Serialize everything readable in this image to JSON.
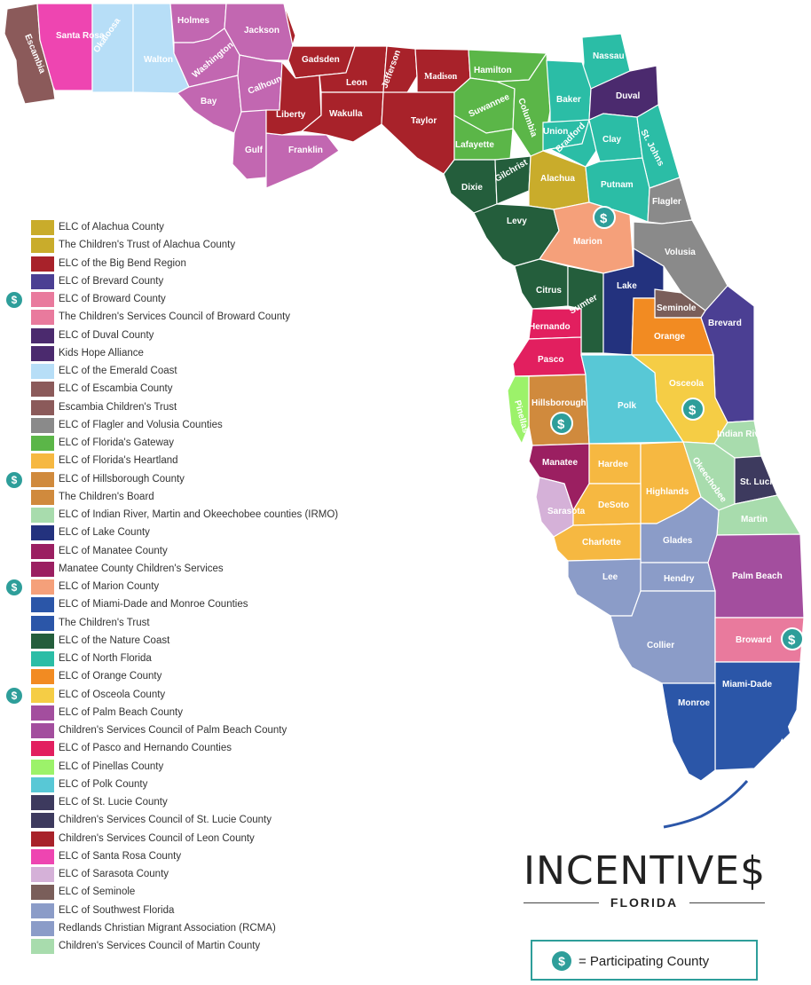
{
  "brand": {
    "title": "INCENTIVE$",
    "subtitle": "FLORIDA"
  },
  "key": {
    "symbol": "$",
    "text": "= Participating County"
  },
  "participating_symbol": "$",
  "colors": {
    "participating": "#2e9e9a"
  },
  "counties": {
    "escambia": "Escambia",
    "santa_rosa": "Santa Rosa",
    "okaloosa": "Okaloosa",
    "walton": "Walton",
    "holmes": "Holmes",
    "jackson": "Jackson",
    "washington": "Washington",
    "bay": "Bay",
    "calhoun": "Calhoun",
    "gulf": "Gulf",
    "franklin": "Franklin",
    "gadsden": "Gadsden",
    "liberty": "Liberty",
    "leon": "Leon",
    "wakulla": "Wakulla",
    "jefferson": "Jefferson",
    "madison": "Madison",
    "taylor": "Taylor",
    "hamilton": "Hamilton",
    "suwannee": "Suwannee",
    "columbia": "Columbia",
    "lafayette": "Lafayette",
    "dixie": "Dixie",
    "gilchrist": "Gilchrist",
    "nassau": "Nassau",
    "baker": "Baker",
    "duval": "Duval",
    "union": "Union",
    "bradford": "Bradford",
    "clay": "Clay",
    "st_johns": "St. Johns",
    "alachua": "Alachua",
    "putnam": "Putnam",
    "flagler": "Flagler",
    "levy": "Levy",
    "marion": "Marion",
    "volusia": "Volusia",
    "citrus": "Citrus",
    "sumter": "Sumter",
    "lake": "Lake",
    "seminole": "Seminole",
    "brevard": "Brevard",
    "hernando": "Hernando",
    "orange": "Orange",
    "pasco": "Pasco",
    "osceola": "Osceola",
    "hillsborough": "Hillsborough",
    "pinellas": "Pinellas",
    "polk": "Polk",
    "indian_river": "Indian River",
    "manatee": "Manatee",
    "hardee": "Hardee",
    "highlands": "Highlands",
    "okeechobee": "Okeechobee",
    "st_lucie": "St. Lucie",
    "sarasota": "Sarasota",
    "desoto": "DeSoto",
    "martin": "Martin",
    "charlotte": "Charlotte",
    "glades": "Glades",
    "lee": "Lee",
    "hendry": "Hendry",
    "palm_beach": "Palm Beach",
    "collier": "Collier",
    "broward": "Broward",
    "monroe": "Monroe",
    "miami_dade": "Miami-Dade"
  },
  "legend": [
    {
      "label": "ELC of Alachua County",
      "color": "#c9ac2b",
      "participating": false
    },
    {
      "label": "The Children's Trust of Alachua County",
      "color": "#c9ac2b",
      "participating": false
    },
    {
      "label": "ELC of the Big Bend Region",
      "color": "#a8222a",
      "participating": false
    },
    {
      "label": "ELC of Brevard County",
      "color": "#4b3f93",
      "participating": false
    },
    {
      "label": "ELC of Broward County",
      "color": "#e97a9d",
      "participating": true
    },
    {
      "label": "The Children's Services Council of Broward County",
      "color": "#e97a9d",
      "participating": false
    },
    {
      "label": "ELC of Duval County",
      "color": "#4b2a6e",
      "participating": false
    },
    {
      "label": "Kids Hope Alliance",
      "color": "#4b2a6e",
      "participating": false
    },
    {
      "label": "ELC of the Emerald Coast",
      "color": "#b7def7",
      "participating": false
    },
    {
      "label": "ELC of Escambia County",
      "color": "#8b5a5a",
      "participating": false
    },
    {
      "label": "Escambia Children's Trust",
      "color": "#8b5a5a",
      "participating": false
    },
    {
      "label": "ELC of Flagler and Volusia Counties",
      "color": "#8a8a8a",
      "participating": false
    },
    {
      "label": "ELC of Florida's Gateway",
      "color": "#5bb648",
      "participating": false
    },
    {
      "label": "ELC of Florida's Heartland",
      "color": "#f6b841",
      "participating": false
    },
    {
      "label": "ELC of Hillsborough County",
      "color": "#d08a3d",
      "participating": true
    },
    {
      "label": "The Children's Board",
      "color": "#d08a3d",
      "participating": false
    },
    {
      "label": "ELC of Indian River, Martin and Okeechobee counties (IRMO)",
      "color": "#a8dcad",
      "participating": false
    },
    {
      "label": "ELC of Lake County",
      "color": "#23327e",
      "participating": false
    },
    {
      "label": "ELC of Manatee County",
      "color": "#9b1f61",
      "participating": false
    },
    {
      "label": "Manatee County Children's Services",
      "color": "#9b1f61",
      "participating": false
    },
    {
      "label": "ELC of Marion County",
      "color": "#f5a07a",
      "participating": true
    },
    {
      "label": "ELC of Miami-Dade and Monroe Counties",
      "color": "#2b56a8",
      "participating": false
    },
    {
      "label": "The Children's Trust",
      "color": "#2b56a8",
      "participating": false
    },
    {
      "label": "ELC of the Nature Coast",
      "color": "#245e3c",
      "participating": false
    },
    {
      "label": "ELC of North Florida",
      "color": "#2bbda6",
      "participating": false
    },
    {
      "label": "ELC of Orange County",
      "color": "#f28b22",
      "participating": false
    },
    {
      "label": "ELC of Osceola County",
      "color": "#f5cd45",
      "participating": true
    },
    {
      "label": "ELC of Palm Beach County",
      "color": "#a34e9e",
      "participating": false
    },
    {
      "label": "Children's Services Council of Palm Beach County",
      "color": "#a34e9e",
      "participating": false
    },
    {
      "label": "ELC of Pasco and Hernando Counties",
      "color": "#e21f5f",
      "participating": false
    },
    {
      "label": "ELC of Pinellas County",
      "color": "#9cf26a",
      "participating": false
    },
    {
      "label": "ELC of Polk County",
      "color": "#58c8d6",
      "participating": false
    },
    {
      "label": "ELC of St. Lucie County",
      "color": "#3d3a5e",
      "participating": false
    },
    {
      "label": "Children's Services Council of St. Lucie County",
      "color": "#3d3a5e",
      "participating": false
    },
    {
      "label": "Children's Services Council of Leon County",
      "color": "#a8222a",
      "participating": false
    },
    {
      "label": "ELC of Santa Rosa County",
      "color": "#ee45b1",
      "participating": false
    },
    {
      "label": "ELC of Sarasota County",
      "color": "#d5b1d8",
      "participating": false
    },
    {
      "label": "ELC of Seminole",
      "color": "#7a5e5a",
      "participating": false
    },
    {
      "label": "ELC of Southwest Florida",
      "color": "#8b9cc8",
      "participating": false
    },
    {
      "label": "Redlands Christian Migrant Association (RCMA)",
      "color": "#8b9cc8",
      "participating": false
    },
    {
      "label": "Children's Services Council of Martin County",
      "color": "#a8dcad",
      "participating": false
    }
  ]
}
